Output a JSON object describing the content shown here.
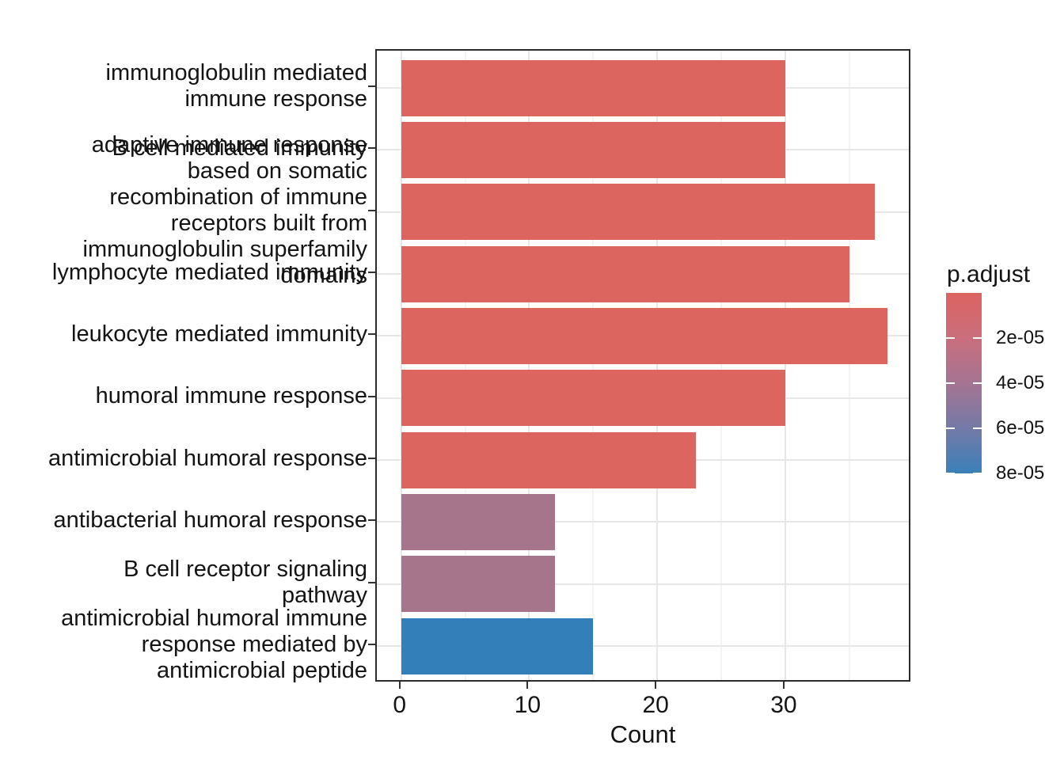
{
  "chart_data": {
    "type": "bar",
    "orientation": "horizontal",
    "title": "",
    "xlabel": "Count",
    "ylabel": "",
    "categories": [
      "immunoglobulin mediated immune response",
      "B cell mediated immunity",
      "adaptive immune response based on somatic recombination of immune receptors built from immunoglobulin superfamily domains",
      "lymphocyte mediated immunity",
      "leukocyte mediated immunity",
      "humoral immune response",
      "antimicrobial humoral response",
      "antibacterial humoral response",
      "B cell receptor signaling pathway",
      "antimicrobial humoral immune response mediated by antimicrobial peptide"
    ],
    "categories_wrapped": [
      [
        "immunoglobulin mediated",
        "immune response"
      ],
      [
        "B cell mediated immunity"
      ],
      [
        "adaptive immune response",
        "based on somatic",
        "recombination of immune",
        "receptors built from",
        "immunoglobulin superfamily",
        "domains"
      ],
      [
        "lymphocyte mediated immunity"
      ],
      [
        "leukocyte mediated immunity"
      ],
      [
        "humoral immune response"
      ],
      [
        "antimicrobial humoral response"
      ],
      [
        "antibacterial humoral response"
      ],
      [
        "B cell receptor signaling",
        "pathway"
      ],
      [
        "antimicrobial humoral immune",
        "response mediated by",
        "antimicrobial peptide"
      ]
    ],
    "values": [
      30,
      30,
      37,
      35,
      38,
      30,
      23,
      12,
      12,
      15
    ],
    "bar_colors": [
      "#dd6560",
      "#dd6560",
      "#dd6560",
      "#dd6560",
      "#dd6560",
      "#dd6560",
      "#dd6560",
      "#a6748b",
      "#a6748b",
      "#337fba"
    ],
    "x_ticks": [
      0,
      10,
      20,
      30
    ],
    "x_minor_ticks": [
      5,
      15,
      25,
      35
    ],
    "xlim": [
      -1.9,
      39.9
    ],
    "bar_width_fraction": 0.9,
    "grid": true,
    "legend": {
      "title": "p.adjust",
      "type": "colorbar",
      "position": "right",
      "tick_labels": [
        "2e-05",
        "4e-05",
        "6e-05",
        "8e-05"
      ],
      "tick_values": [
        2e-05,
        4e-05,
        6e-05,
        8e-05
      ],
      "range": [
        0,
        8e-05
      ],
      "top_color": "#dc6360",
      "bottom_color": "#3a80b9"
    }
  },
  "colors": {
    "red_bar": "#dd6560",
    "purple_bar": "#a6748b",
    "blue_bar": "#337fba",
    "panel_border": "#2b2b2b",
    "grid_major": "#e7e7e7",
    "grid_minor": "#f3f3f3"
  }
}
